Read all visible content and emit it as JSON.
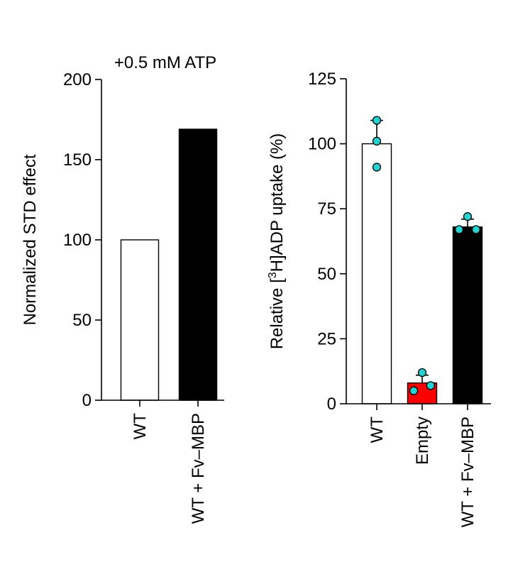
{
  "chart_data": [
    {
      "type": "bar",
      "annotation": "+0.5 mM ATP",
      "ylabel": "Normalized STD effect",
      "categories": [
        "WT",
        "WT + Fv–MBP"
      ],
      "values": [
        100,
        169
      ],
      "colors": [
        "#ffffff",
        "#000000"
      ],
      "ylim": [
        0,
        200
      ],
      "yticks": [
        "0",
        "50",
        "100",
        "150",
        "200"
      ],
      "grid": false,
      "legend": "none"
    },
    {
      "type": "bar",
      "ylabel_parts": [
        "Relative [",
        "3",
        "H]ADP uptake (%)"
      ],
      "categories": [
        "WT",
        "Empty",
        "WT + Fv–MBP"
      ],
      "values": [
        100,
        8,
        68
      ],
      "errors": [
        9,
        3,
        3
      ],
      "points": [
        [
          109,
          101,
          91
        ],
        [
          12,
          5,
          7
        ],
        [
          72,
          67,
          67
        ]
      ],
      "colors": [
        "#ffffff",
        "#ff0000",
        "#000000"
      ],
      "point_color": "#21d3d3",
      "ylim": [
        0,
        125
      ],
      "yticks": [
        "0",
        "25",
        "50",
        "75",
        "100",
        "125"
      ],
      "grid": false,
      "legend": "none"
    }
  ]
}
